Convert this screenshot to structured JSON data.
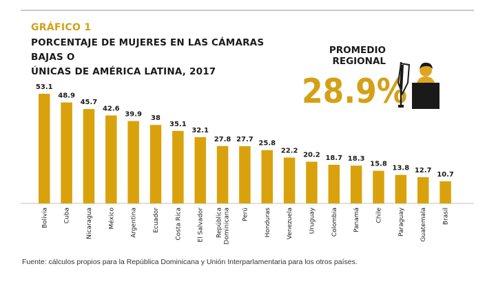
{
  "kicker": "GRÁFICO 1",
  "title_line1": "PORCENTAJE DE MUJERES EN LAS CÁMARAS BAJAS O",
  "title_line2": "ÚNICAS DE AMÉRICA LATINA, 2017",
  "regional_label_line1": "PROMEDIO",
  "regional_label_line2": "REGIONAL",
  "regional_value": "28.9%",
  "source": "Fuente: cálculos propios para la República Dominicana y Unión Interparlamentaria para los otros países.",
  "colors": {
    "bar": "#d9a20c",
    "accent": "#d4a017",
    "text": "#1a1a1a",
    "podium": "#1a1a1a"
  },
  "icons": {
    "podium": "podium-speaker-icon"
  },
  "chart_data": {
    "type": "bar",
    "categories": [
      "Bolivia",
      "Cuba",
      "Nicaragua",
      "México",
      "Argentina",
      "Ecuador",
      "Costa Rica",
      "El Salvador",
      "República Dominicana",
      "Perú",
      "Honduras",
      "Venezuela",
      "Uruguay",
      "Colombia",
      "Panamá",
      "Chile",
      "Paraguay",
      "Guatemala",
      "Brasil"
    ],
    "category_lines": [
      [
        "Bolivia"
      ],
      [
        "Cuba"
      ],
      [
        "Nicaragua"
      ],
      [
        "México"
      ],
      [
        "Argentina"
      ],
      [
        "Ecuador"
      ],
      [
        "Costa Rica"
      ],
      [
        "El Salvador"
      ],
      [
        "República",
        "Dominicana"
      ],
      [
        "Perú"
      ],
      [
        "Honduras"
      ],
      [
        "Venezuela"
      ],
      [
        "Uruguay"
      ],
      [
        "Colombia"
      ],
      [
        "Panamá"
      ],
      [
        "Chile"
      ],
      [
        "Paraguay"
      ],
      [
        "Guatemala"
      ],
      [
        "Brasil"
      ]
    ],
    "values": [
      53.1,
      48.9,
      45.7,
      42.6,
      39.9,
      38,
      35.1,
      32.1,
      27.8,
      27.7,
      25.8,
      22.2,
      20.2,
      18.7,
      18.3,
      15.8,
      13.8,
      12.7,
      10.7
    ],
    "value_labels": [
      "53.1",
      "48.9",
      "45.7",
      "42.6",
      "39.9",
      "38",
      "35.1",
      "32.1",
      "27.8",
      "27.7",
      "25.8",
      "22.2",
      "20.2",
      "18.7",
      "18.3",
      "15.8",
      "13.8",
      "12.7",
      "10.7"
    ],
    "ylim": [
      0,
      53.1
    ],
    "grid": false,
    "legend": "none",
    "xlabel": "",
    "ylabel": ""
  }
}
